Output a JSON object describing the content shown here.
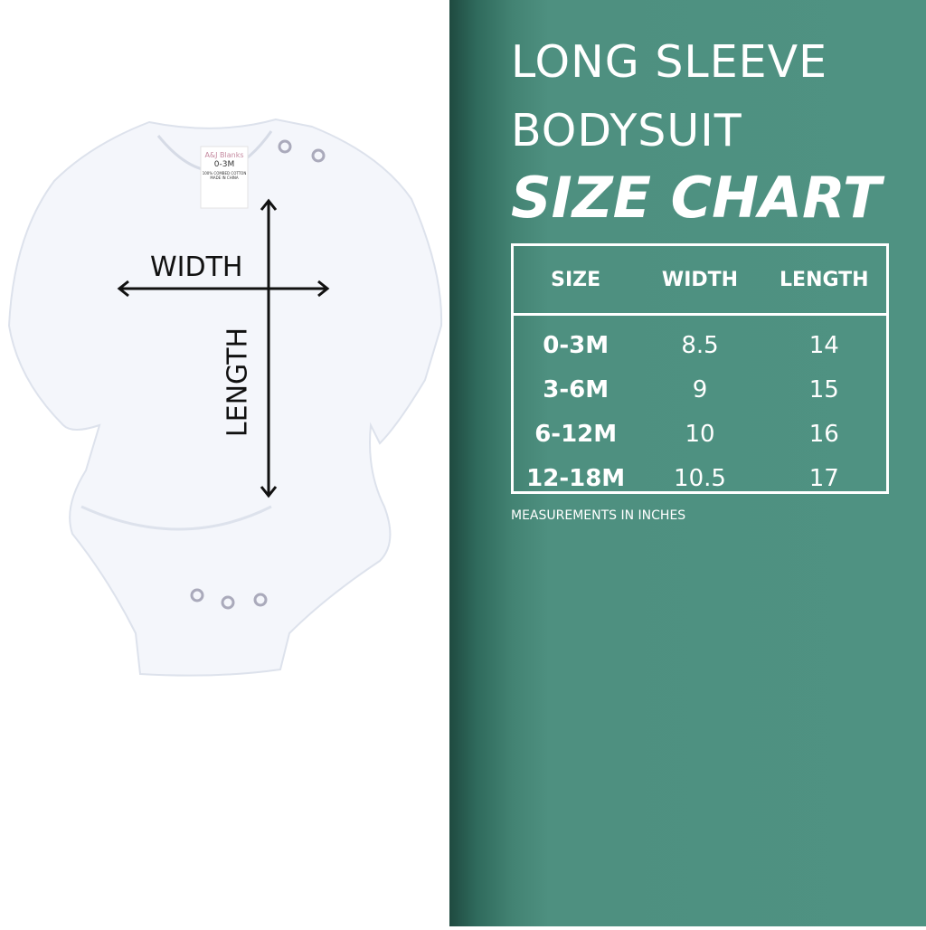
{
  "header": {
    "line1": "LONG SLEEVE",
    "line2": "BODYSUIT",
    "line3": "SIZE CHART"
  },
  "table": {
    "columns": [
      "SIZE",
      "WIDTH",
      "LENGTH"
    ],
    "rows": [
      {
        "size": "0-3M",
        "width": "8.5",
        "length": "14"
      },
      {
        "size": "3-6M",
        "width": "9",
        "length": "15"
      },
      {
        "size": "6-12M",
        "width": "10",
        "length": "16"
      },
      {
        "size": "12-18M",
        "width": "10.5",
        "length": "17"
      }
    ]
  },
  "note": "MEASUREMENTS IN INCHES",
  "diagram": {
    "width_label": "WIDTH",
    "length_label": "LENGTH"
  },
  "garment_tag": {
    "brand": "A&J Blanks",
    "size": "0-3M",
    "fabric": "100% COMBED COTTON",
    "origin": "MADE IN CHINA"
  },
  "colors": {
    "panel": "#4f9282",
    "text": "#ffffff"
  }
}
